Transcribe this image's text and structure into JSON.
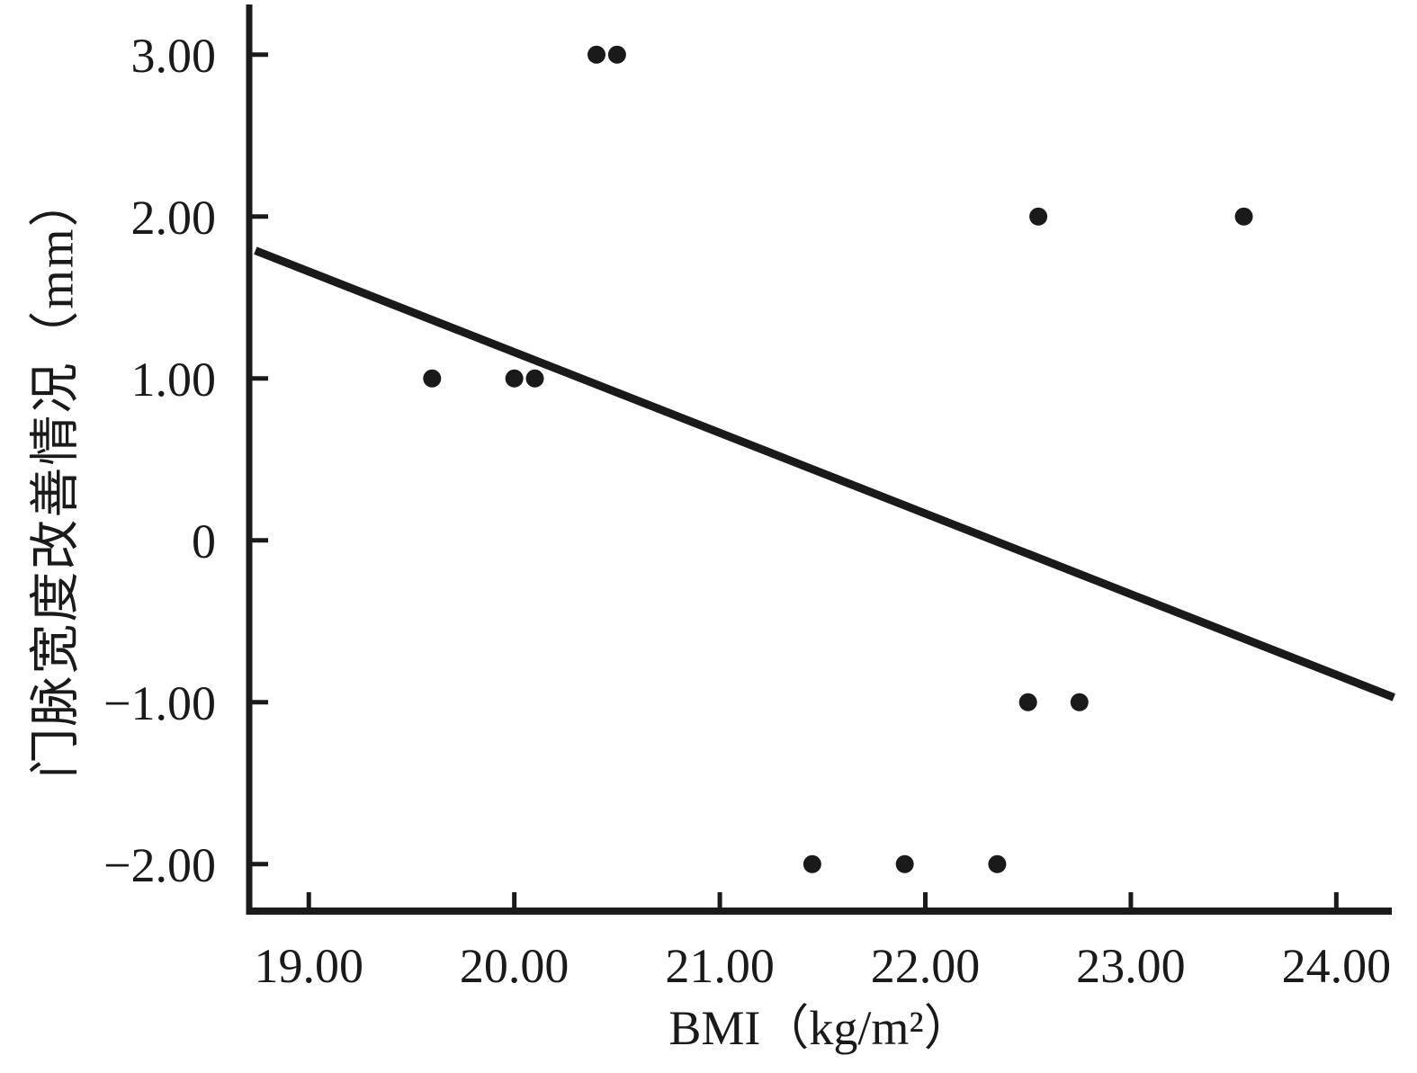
{
  "colors": {
    "ink": "#1a1a1a",
    "background": "#ffffff"
  },
  "chart_data": {
    "type": "scatter",
    "title": "",
    "xlabel": "BMI（kg/m²）",
    "ylabel": "门脉宽度改善情况（mm）",
    "xlim": [
      18.71,
      24.27
    ],
    "ylim": [
      -2.29,
      3.31
    ],
    "grid": false,
    "legend": null,
    "x_ticks": [
      {
        "value": 19,
        "label": "19.00"
      },
      {
        "value": 20,
        "label": "20.00"
      },
      {
        "value": 21,
        "label": "21.00"
      },
      {
        "value": 22,
        "label": "22.00"
      },
      {
        "value": 23,
        "label": "23.00"
      },
      {
        "value": 24,
        "label": "24.00"
      }
    ],
    "y_ticks": [
      {
        "value": 3,
        "label": "3.00"
      },
      {
        "value": 2,
        "label": "2.00"
      },
      {
        "value": 1,
        "label": "1.00"
      },
      {
        "value": 0,
        "label": "0"
      },
      {
        "value": -1,
        "label": "−1.00"
      },
      {
        "value": -2,
        "label": "−2.00"
      }
    ],
    "points": [
      {
        "x": 20.4,
        "y": 3.0
      },
      {
        "x": 20.5,
        "y": 3.0
      },
      {
        "x": 22.55,
        "y": 2.0
      },
      {
        "x": 23.55,
        "y": 2.0
      },
      {
        "x": 19.6,
        "y": 1.0
      },
      {
        "x": 20.0,
        "y": 1.0
      },
      {
        "x": 20.1,
        "y": 1.0
      },
      {
        "x": 22.5,
        "y": -1.0
      },
      {
        "x": 22.75,
        "y": -1.0
      },
      {
        "x": 21.45,
        "y": -2.0
      },
      {
        "x": 21.9,
        "y": -2.0
      },
      {
        "x": 22.35,
        "y": -2.0
      }
    ],
    "trendline": {
      "x1": 18.74,
      "y1": 1.79,
      "x2": 24.28,
      "y2": -0.97,
      "slope": -0.5
    }
  }
}
